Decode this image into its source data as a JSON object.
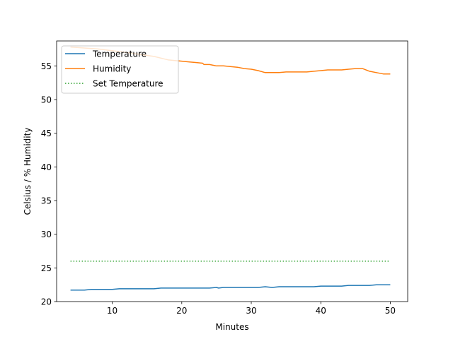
{
  "chart_data": {
    "type": "line",
    "title": "",
    "xlabel": "Minutes",
    "ylabel": "Celsius / % Humidity",
    "xlim": [
      2,
      52.5
    ],
    "ylim": [
      20,
      58.7
    ],
    "xticks": [
      10,
      20,
      30,
      40,
      50
    ],
    "yticks": [
      20,
      25,
      30,
      35,
      40,
      45,
      50,
      55
    ],
    "grid": false,
    "legend": "top-left",
    "series": [
      {
        "name": "Temperature",
        "color": "#1f77b4",
        "style": "solid",
        "x": [
          4,
          6,
          7,
          10,
          11,
          16,
          17,
          24,
          25,
          25.3,
          26,
          31,
          32,
          33,
          34,
          39,
          40,
          43,
          44,
          47,
          48,
          50
        ],
        "y": [
          21.7,
          21.7,
          21.8,
          21.8,
          21.9,
          21.9,
          22.0,
          22.0,
          22.1,
          22.0,
          22.1,
          22.1,
          22.2,
          22.1,
          22.2,
          22.2,
          22.3,
          22.3,
          22.4,
          22.4,
          22.5,
          22.5
        ]
      },
      {
        "name": "Humidity",
        "color": "#ff7f0e",
        "style": "solid",
        "x": [
          4,
          8,
          12,
          16,
          18,
          19,
          20,
          21,
          22,
          23,
          23.2,
          24,
          25,
          26,
          27,
          28,
          29,
          30,
          31,
          32,
          33,
          34,
          35,
          38,
          39,
          40,
          41,
          42,
          43,
          44,
          45,
          46,
          47,
          48,
          49,
          50
        ],
        "y": [
          57.8,
          57.5,
          57.0,
          56.4,
          55.9,
          55.8,
          55.7,
          55.6,
          55.5,
          55.4,
          55.2,
          55.2,
          55.0,
          55.0,
          54.9,
          54.8,
          54.6,
          54.5,
          54.3,
          54.0,
          54.0,
          54.0,
          54.1,
          54.1,
          54.2,
          54.3,
          54.4,
          54.4,
          54.4,
          54.5,
          54.6,
          54.6,
          54.2,
          54.0,
          53.8,
          53.8
        ]
      },
      {
        "name": "Set Temperature",
        "color": "#2ca02c",
        "style": "dotted",
        "x": [
          4,
          50
        ],
        "y": [
          26.0,
          26.0
        ]
      }
    ]
  }
}
